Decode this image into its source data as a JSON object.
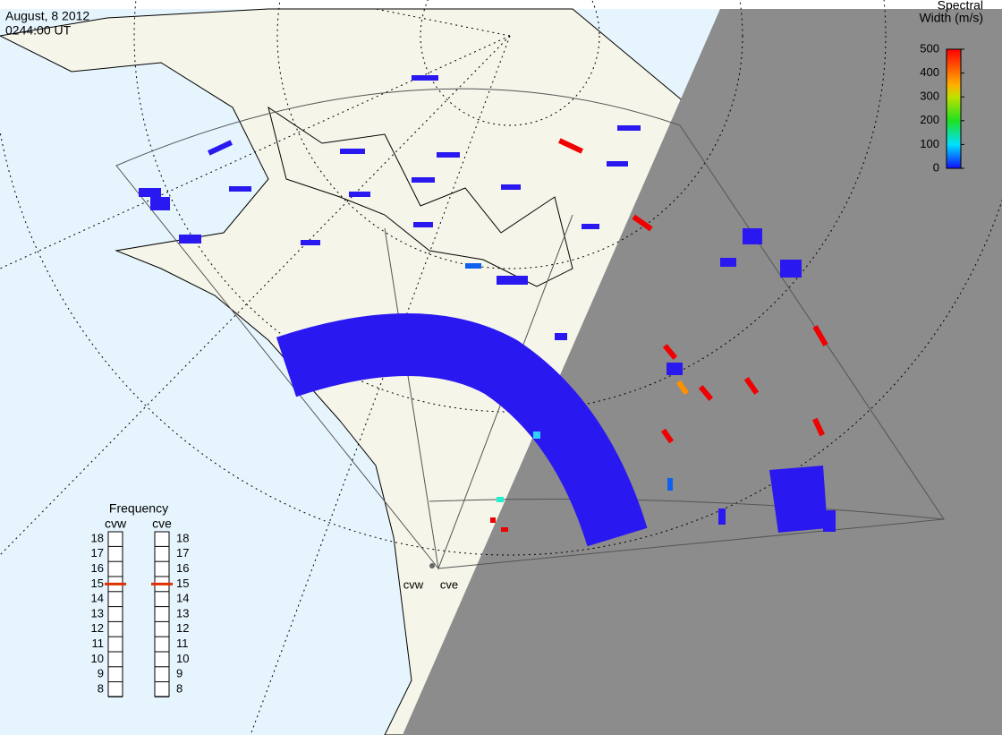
{
  "header": {
    "date": "August, 8 2012",
    "time": "0244:00 UT"
  },
  "colorbar": {
    "title_lines": [
      "Spectral",
      "Width (m/s)"
    ],
    "range": [
      0,
      500
    ],
    "ticks": [
      0,
      100,
      200,
      300,
      400,
      500
    ]
  },
  "frequency": {
    "title": "Frequency",
    "range": [
      8,
      18
    ],
    "ticks": [
      8,
      9,
      10,
      11,
      12,
      13,
      14,
      15,
      16,
      17,
      18
    ],
    "radars": [
      {
        "name": "cvw",
        "value": 15
      },
      {
        "name": "cve",
        "value": 15
      }
    ]
  },
  "sites": [
    "cvw",
    "cve"
  ]
}
